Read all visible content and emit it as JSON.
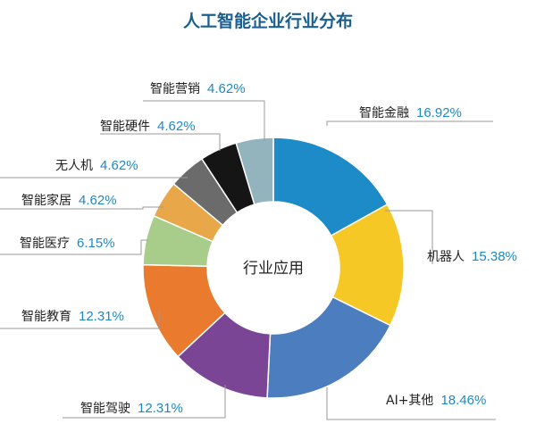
{
  "chart_data": {
    "type": "pie",
    "title": "人工智能企业行业分布",
    "center_label": "行业应用",
    "series": [
      {
        "label": "智能金融",
        "value": 16.92,
        "display": "16.92%",
        "color": "#1e8bc9"
      },
      {
        "label": "机器人",
        "value": 15.38,
        "display": "15.38%",
        "color": "#f5c825"
      },
      {
        "label": "AI+其他",
        "value": 18.46,
        "display": "18.46%",
        "color": "#4b7dbf"
      },
      {
        "label": "智能驾驶",
        "value": 12.31,
        "display": "12.31%",
        "color": "#7b4596"
      },
      {
        "label": "智能教育",
        "value": 12.31,
        "display": "12.31%",
        "color": "#ea7a2e"
      },
      {
        "label": "智能医疗",
        "value": 6.15,
        "display": "6.15%",
        "color": "#a8cd8a"
      },
      {
        "label": "智能家居",
        "value": 4.62,
        "display": "4.62%",
        "color": "#e8a84a"
      },
      {
        "label": "无人机",
        "value": 4.62,
        "display": "4.62%",
        "color": "#6b6b6b"
      },
      {
        "label": "智能硬件",
        "value": 4.62,
        "display": "4.62%",
        "color": "#151515"
      },
      {
        "label": "智能营销",
        "value": 4.62,
        "display": "4.62%",
        "color": "#93b3bd"
      }
    ]
  },
  "colors": {
    "title": "#1a5f8f",
    "value_text": "#1e88c4",
    "leader": "#9a9a9a"
  }
}
